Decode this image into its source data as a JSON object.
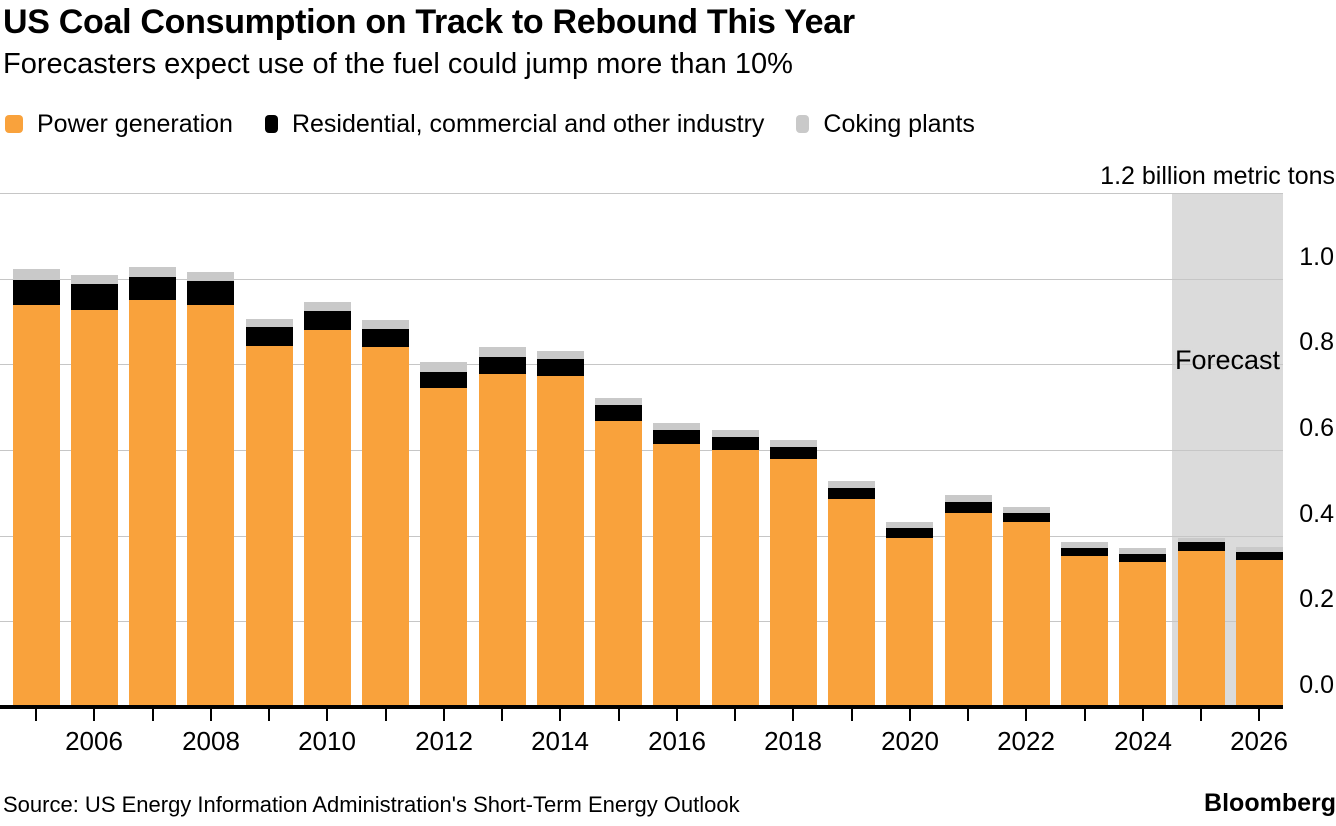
{
  "chart_data": {
    "type": "bar",
    "stacked": true,
    "title": "US Coal Consumption on Track to Rebound This Year",
    "subtitle": "Forecasters expect use of the fuel could jump more than 10%",
    "unit_top_label": "1.2 billion metric tons",
    "ylim": [
      0,
      1.2
    ],
    "grid": "horizontal",
    "legend_position": "top",
    "categories": [
      2005,
      2006,
      2007,
      2008,
      2009,
      2010,
      2011,
      2012,
      2013,
      2014,
      2015,
      2016,
      2017,
      2018,
      2019,
      2020,
      2021,
      2022,
      2023,
      2024,
      2025,
      2026
    ],
    "series": [
      {
        "name": "Power generation",
        "color": "#F9A23C",
        "values": [
          0.938,
          0.928,
          0.95,
          0.938,
          0.842,
          0.881,
          0.84,
          0.745,
          0.777,
          0.773,
          0.667,
          0.615,
          0.6,
          0.578,
          0.486,
          0.394,
          0.454,
          0.431,
          0.352,
          0.338,
          0.365,
          0.344
        ]
      },
      {
        "name": "Residential, commercial and other industry",
        "color": "#000000",
        "values": [
          0.06,
          0.059,
          0.053,
          0.056,
          0.046,
          0.044,
          0.043,
          0.038,
          0.041,
          0.04,
          0.038,
          0.031,
          0.03,
          0.029,
          0.025,
          0.024,
          0.025,
          0.021,
          0.019,
          0.02,
          0.02,
          0.019
        ]
      },
      {
        "name": "Coking plants",
        "color": "#C9C9C9",
        "values": [
          0.024,
          0.022,
          0.024,
          0.022,
          0.018,
          0.021,
          0.021,
          0.022,
          0.022,
          0.019,
          0.017,
          0.018,
          0.017,
          0.016,
          0.016,
          0.014,
          0.016,
          0.015,
          0.014,
          0.013,
          0.01,
          0.011
        ]
      }
    ],
    "y_tick_labels": [
      "0.0",
      "0.2",
      "0.4",
      "0.6",
      "0.8",
      "1.0"
    ],
    "y_gridline_values": [
      0.2,
      0.4,
      0.6,
      0.8,
      1.0,
      1.2
    ],
    "x_tick_labels": [
      "2006",
      "2008",
      "2010",
      "2012",
      "2014",
      "2016",
      "2018",
      "2020",
      "2022",
      "2024",
      "2026"
    ],
    "forecast": {
      "label": "Forecast",
      "years": [
        2025,
        2026
      ],
      "band_color": "#DBDBDB"
    },
    "gridline_color": "#C6C6C6",
    "axis_color": "#000000"
  },
  "footer": {
    "source": "Source: US Energy Information Administration's Short-Term Energy Outlook",
    "brand": "Bloomberg"
  }
}
